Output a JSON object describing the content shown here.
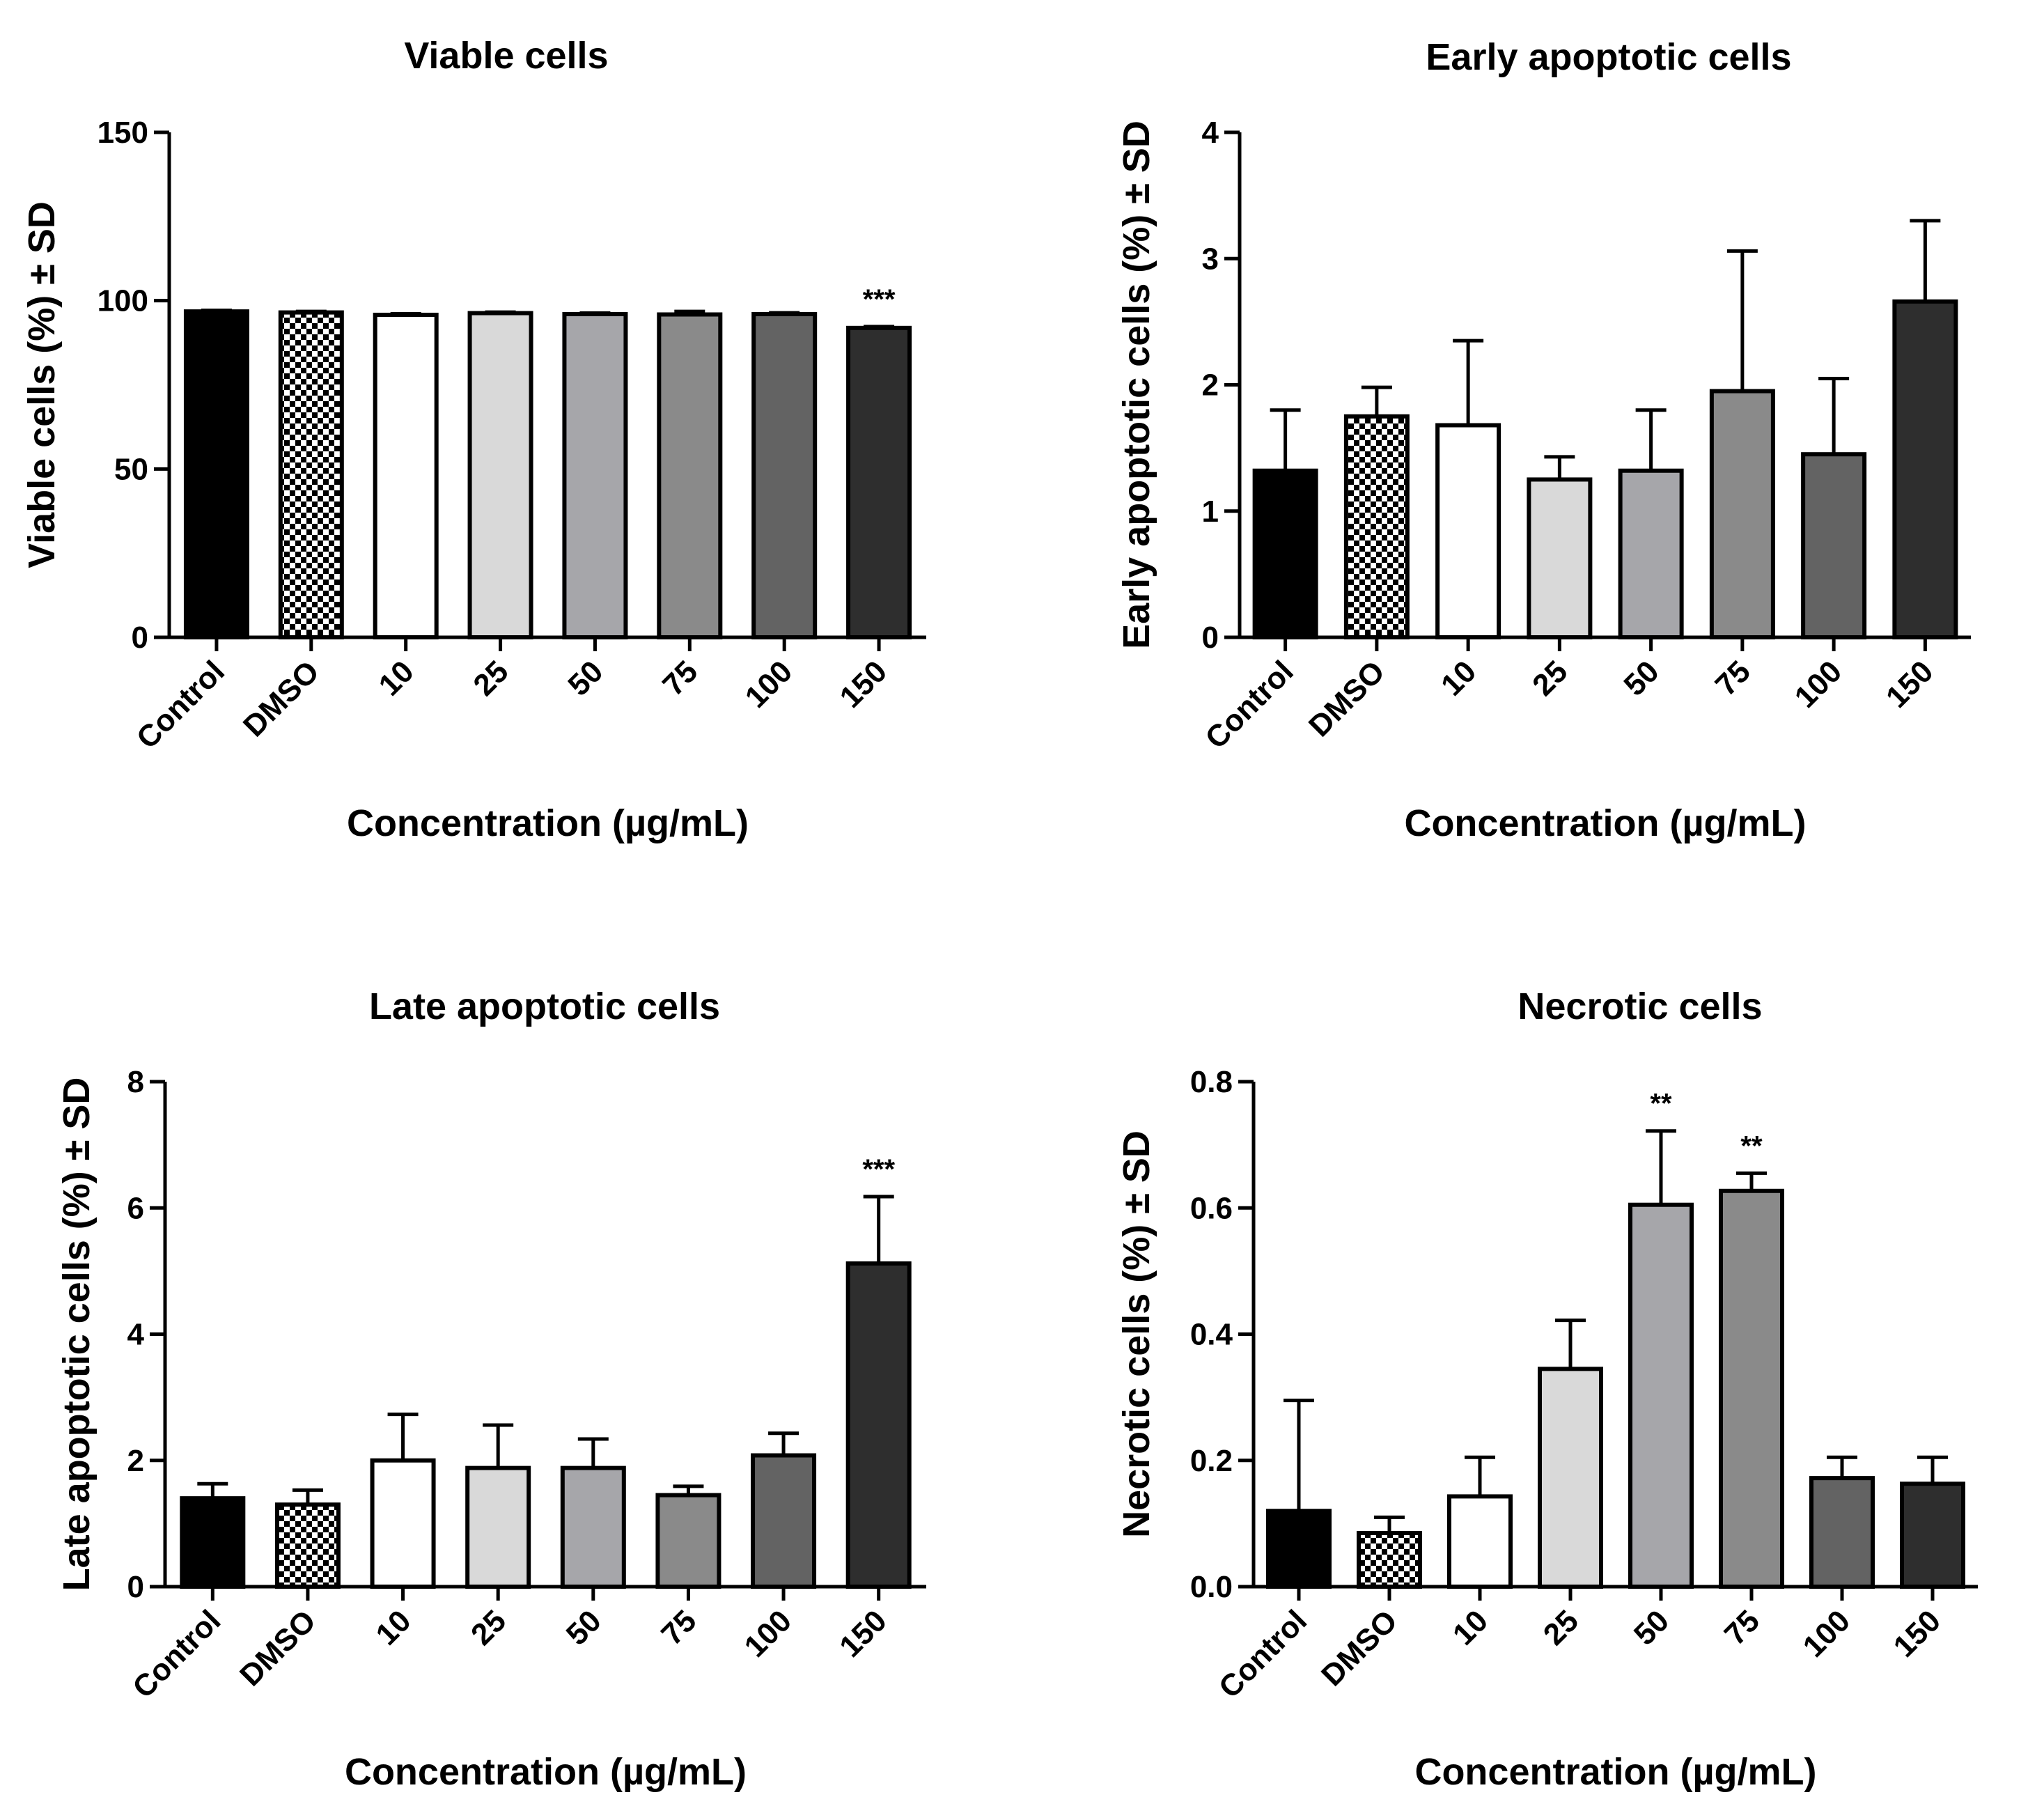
{
  "chart_data": [
    {
      "type": "bar",
      "title": "Viable cells",
      "xlabel": "Concentration (µg/mL)",
      "ylabel": "Viable cells (%) ± SD",
      "categories": [
        "Control",
        "DMSO",
        "10",
        "25",
        "50",
        "75",
        "100",
        "150"
      ],
      "values": [
        96.8,
        96.5,
        95.8,
        96.3,
        96.0,
        95.9,
        96.0,
        91.9
      ],
      "errors": [
        0.3,
        0.3,
        0.3,
        0.3,
        0.3,
        0.9,
        0.4,
        0.4
      ],
      "yticks": [
        0,
        50,
        100,
        150
      ],
      "ylim": [
        0,
        150
      ],
      "annotations": [
        {
          "category": "150",
          "text": "***"
        }
      ]
    },
    {
      "type": "bar",
      "title": "Early apoptotic cells",
      "xlabel": "Concentration (µg/mL)",
      "ylabel": "Early apoptotic cells (%) ± SD",
      "categories": [
        "Control",
        "DMSO",
        "10",
        "25",
        "50",
        "75",
        "100",
        "150"
      ],
      "values": [
        1.32,
        1.75,
        1.68,
        1.25,
        1.32,
        1.95,
        1.45,
        2.66
      ],
      "errors": [
        0.48,
        0.23,
        0.67,
        0.18,
        0.48,
        1.11,
        0.6,
        0.64
      ],
      "yticks": [
        0,
        1,
        2,
        3,
        4
      ],
      "ylim": [
        0,
        4
      ],
      "annotations": []
    },
    {
      "type": "bar",
      "title": "Late apoptotic cells",
      "xlabel": "Concentration (µg/mL)",
      "ylabel": "Late apoptotic cells (%) ± SD",
      "categories": [
        "Control",
        "DMSO",
        "10",
        "25",
        "50",
        "75",
        "100",
        "150"
      ],
      "values": [
        1.4,
        1.3,
        2.0,
        1.88,
        1.88,
        1.45,
        2.08,
        5.12
      ],
      "errors": [
        0.23,
        0.23,
        0.73,
        0.68,
        0.46,
        0.14,
        0.35,
        1.06
      ],
      "yticks": [
        0,
        2,
        4,
        6,
        8
      ],
      "ylim": [
        0,
        8
      ],
      "annotations": [
        {
          "category": "150",
          "text": "***"
        }
      ]
    },
    {
      "type": "bar",
      "title": "Necrotic cells",
      "xlabel": "Concentration (µg/mL)",
      "ylabel": "Necrotic cells (%) ± SD",
      "categories": [
        "Control",
        "DMSO",
        "10",
        "25",
        "50",
        "75",
        "100",
        "150"
      ],
      "values": [
        0.12,
        0.085,
        0.143,
        0.345,
        0.605,
        0.627,
        0.172,
        0.163
      ],
      "errors": [
        0.175,
        0.025,
        0.062,
        0.077,
        0.117,
        0.028,
        0.033,
        0.042
      ],
      "yticks": [
        "0.0",
        "0.2",
        "0.4",
        "0.6",
        "0.8"
      ],
      "ylim": [
        0,
        0.8
      ],
      "annotations": [
        {
          "category": "50",
          "text": "**"
        },
        {
          "category": "75",
          "text": "**"
        }
      ]
    }
  ],
  "styles": {
    "bar_fills": [
      "#000000",
      "checker",
      "#ffffff",
      "#d9d9d9",
      "#a6a6aa",
      "#8a8a8a",
      "#636363",
      "#2e2e2e"
    ],
    "stroke": "#000000"
  }
}
